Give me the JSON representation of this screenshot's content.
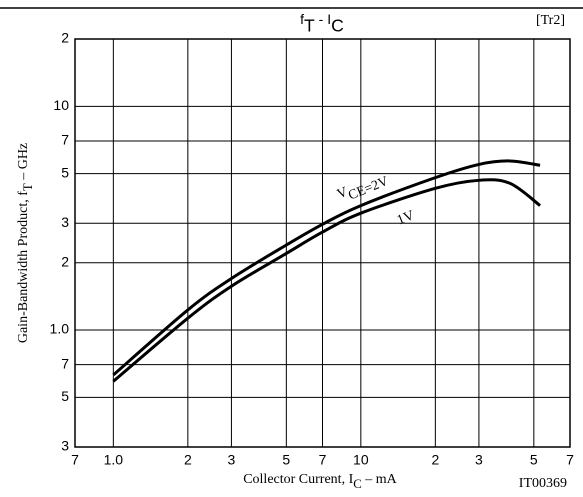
{
  "chart_data": {
    "type": "line",
    "title_parts": [
      {
        "text": "f"
      },
      {
        "text": "T",
        "sub": true
      },
      {
        "text": " - "
      },
      {
        "text": "I"
      },
      {
        "text": "C",
        "sub": true
      }
    ],
    "tag": "[Tr2]",
    "code": "IT00369",
    "x_label_parts": [
      {
        "text": "Collector Current, I"
      },
      {
        "text": "C",
        "sub": true
      },
      {
        "text": "  –  mA"
      }
    ],
    "y_label_parts": [
      {
        "text": "Gain-Bandwidth Product, f"
      },
      {
        "text": "T",
        "sub": true
      },
      {
        "text": "  –  GHz"
      }
    ],
    "x_log": true,
    "y_log": true,
    "grid": true,
    "color": "#000000",
    "xlim": [
      0.7,
      70
    ],
    "ylim": [
      0.3,
      20
    ],
    "xticks": [
      {
        "value": 0.7,
        "label": "7"
      },
      {
        "value": 1,
        "label": "1.0"
      },
      2,
      3,
      5,
      7,
      10,
      {
        "value": 20,
        "label": "2"
      },
      {
        "value": 30,
        "label": "3"
      },
      {
        "value": 50,
        "label": "5"
      },
      {
        "value": 70,
        "label": "7"
      }
    ],
    "yticks": [
      {
        "value": 0.3,
        "label": "3"
      },
      {
        "value": 0.5,
        "label": "5"
      },
      {
        "value": 0.7,
        "label": "7"
      },
      {
        "value": 1,
        "label": "1.0"
      },
      2,
      3,
      5,
      7,
      10,
      {
        "value": 20,
        "label": "2"
      }
    ],
    "series": [
      {
        "name_parts": [
          {
            "text": "V"
          },
          {
            "text": "CE=2V",
            "sub": true
          }
        ],
        "x": [
          1,
          2,
          3,
          5,
          7,
          10,
          20,
          30,
          40,
          53
        ],
        "values": [
          0.63,
          1.23,
          1.7,
          2.4,
          2.97,
          3.6,
          4.8,
          5.5,
          5.7,
          5.45
        ]
      },
      {
        "name_parts": [
          {
            "text": "1V"
          }
        ],
        "x": [
          1,
          2,
          3,
          5,
          7,
          10,
          20,
          30,
          40,
          53
        ],
        "values": [
          0.59,
          1.13,
          1.57,
          2.2,
          2.74,
          3.33,
          4.3,
          4.67,
          4.53,
          3.6
        ]
      }
    ]
  }
}
